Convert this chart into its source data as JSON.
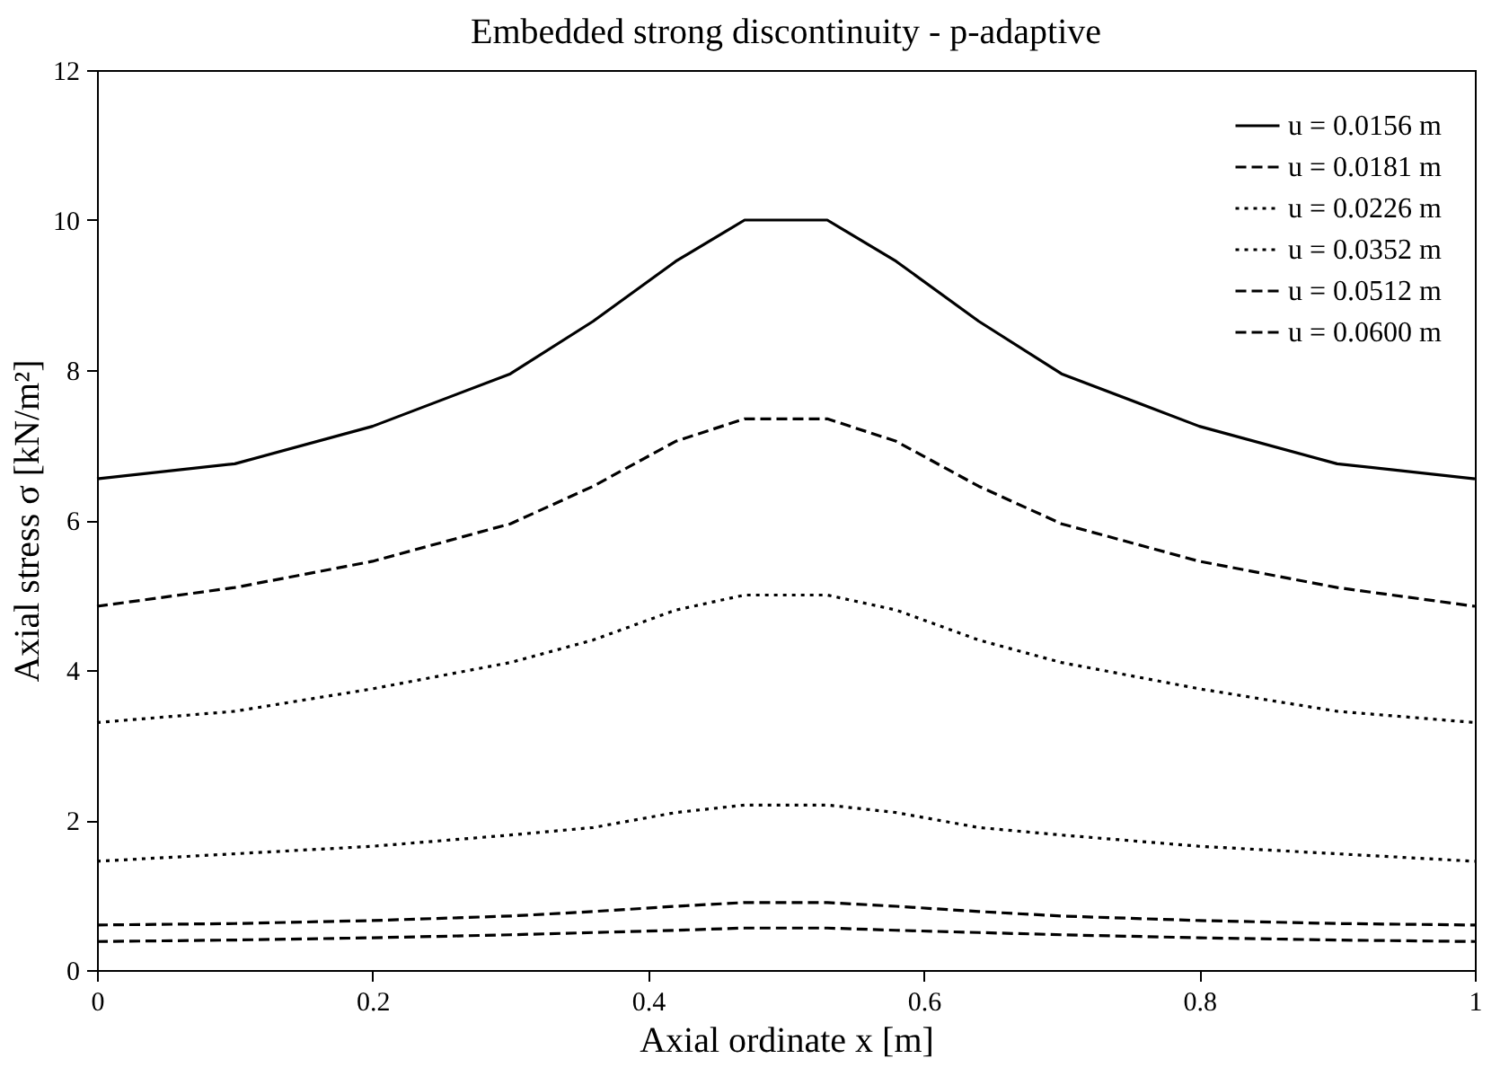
{
  "chart_data": {
    "type": "line",
    "title": "Embedded strong discontinuity - p-adaptive",
    "xlabel": "Axial ordinate x [m]",
    "ylabel": "Axial stress σ [kN/m²]",
    "x": [
      0,
      0.1,
      0.2,
      0.3,
      0.36,
      0.42,
      0.47,
      0.53,
      0.58,
      0.64,
      0.7,
      0.8,
      0.9,
      1
    ],
    "xlim": [
      0,
      1
    ],
    "xticks": [
      0,
      0.2,
      0.4,
      0.6,
      0.8,
      1
    ],
    "ylim": [
      0,
      12
    ],
    "yticks": [
      0,
      2,
      4,
      6,
      8,
      10,
      12
    ],
    "grid": false,
    "legend": "top right",
    "series": [
      {
        "name": "u = 0.0156 m",
        "color": "#000000",
        "line_style": "solid",
        "values": [
          6.55,
          6.75,
          7.25,
          7.95,
          8.65,
          9.45,
          10.0,
          10.0,
          9.45,
          8.65,
          7.95,
          7.25,
          6.75,
          6.55
        ]
      },
      {
        "name": "u = 0.0181 m",
        "color": "#000000",
        "line_style": "dashed",
        "values": [
          4.85,
          5.1,
          5.45,
          5.95,
          6.45,
          7.05,
          7.35,
          7.35,
          7.05,
          6.45,
          5.95,
          5.45,
          5.1,
          4.85
        ]
      },
      {
        "name": "u = 0.0226 m",
        "color": "#000000",
        "line_style": "dotted",
        "values": [
          3.3,
          3.45,
          3.75,
          4.1,
          4.4,
          4.8,
          5.0,
          5.0,
          4.8,
          4.4,
          4.1,
          3.75,
          3.45,
          3.3
        ]
      },
      {
        "name": "u = 0.0352 m",
        "color": "#000000",
        "line_style": "dotted",
        "values": [
          1.45,
          1.55,
          1.65,
          1.8,
          1.9,
          2.1,
          2.2,
          2.2,
          2.1,
          1.9,
          1.8,
          1.65,
          1.55,
          1.45
        ]
      },
      {
        "name": "u = 0.0512 m",
        "color": "#000000",
        "line_style": "dashed",
        "values": [
          0.6,
          0.62,
          0.66,
          0.72,
          0.78,
          0.85,
          0.9,
          0.9,
          0.85,
          0.78,
          0.72,
          0.66,
          0.62,
          0.6
        ]
      },
      {
        "name": "u = 0.0600 m",
        "color": "#000000",
        "line_style": "dashed",
        "values": [
          0.38,
          0.4,
          0.43,
          0.47,
          0.5,
          0.53,
          0.56,
          0.56,
          0.53,
          0.5,
          0.47,
          0.43,
          0.4,
          0.38
        ]
      }
    ]
  }
}
